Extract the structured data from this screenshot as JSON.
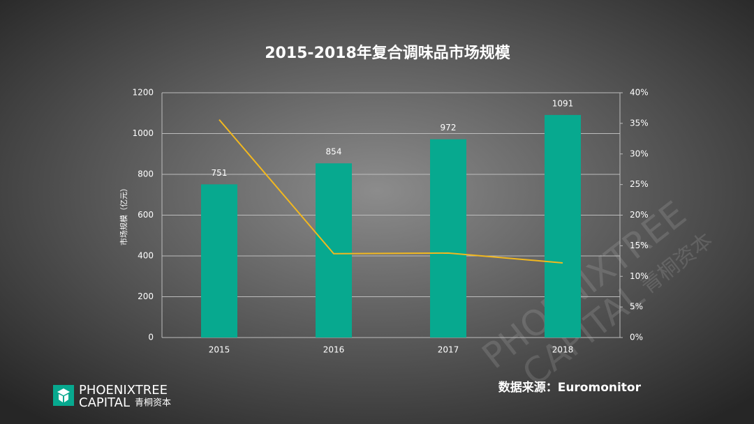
{
  "chart_data": {
    "type": "bar_line",
    "title": "2015-2018年复合调味品市场规模",
    "y_label": "市场规模（亿元）",
    "source": "数据来源：Euromonitor",
    "categories": [
      "2015",
      "2016",
      "2017",
      "2018"
    ],
    "series": [
      {
        "type": "bar",
        "color": "#07a98f",
        "values": [
          751,
          854,
          972,
          1091
        ]
      },
      {
        "type": "line",
        "axis": "y2",
        "color": "#f2b81f",
        "values": [
          35.6,
          13.7,
          13.8,
          12.2
        ]
      }
    ],
    "ylim": [
      0,
      1200
    ],
    "yticks": [
      0,
      200,
      400,
      600,
      800,
      1000,
      1200
    ],
    "y2lim": [
      0,
      40
    ],
    "y2ticks": [
      {
        "value": 0,
        "label": "0%"
      },
      {
        "value": 5,
        "label": "5%"
      },
      {
        "value": 10,
        "label": "10%"
      },
      {
        "value": 15,
        "label": "15%"
      },
      {
        "value": 20,
        "label": "20%"
      },
      {
        "value": 25,
        "label": "25%"
      },
      {
        "value": 30,
        "label": "30%"
      },
      {
        "value": 35,
        "label": "35%"
      },
      {
        "value": 40,
        "label": "40%"
      }
    ],
    "grid": true
  },
  "logo": {
    "name": "PHOENIXTREE",
    "sub": "CAPITAL",
    "cn": "青桐资本"
  }
}
